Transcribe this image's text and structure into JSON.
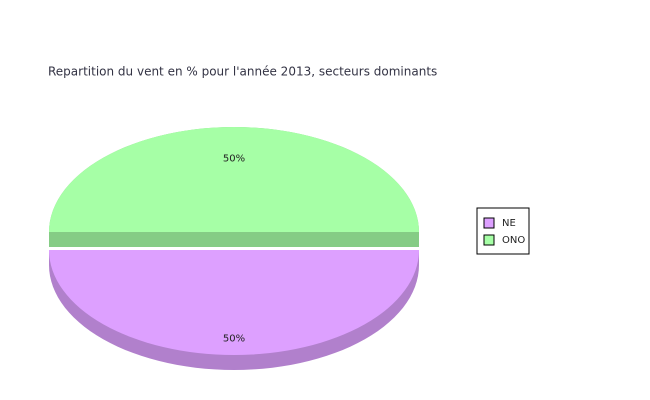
{
  "chart_data": {
    "type": "pie",
    "title": "Repartition du vent en % pour l'année 2013, secteurs dominants",
    "categories": [
      "NE",
      "ONO"
    ],
    "values": [
      50,
      50
    ],
    "value_labels": [
      "50%",
      "50%"
    ],
    "colors": [
      "#dda0ff",
      "#a6ffa6"
    ],
    "legend": "right",
    "three_d": true
  }
}
